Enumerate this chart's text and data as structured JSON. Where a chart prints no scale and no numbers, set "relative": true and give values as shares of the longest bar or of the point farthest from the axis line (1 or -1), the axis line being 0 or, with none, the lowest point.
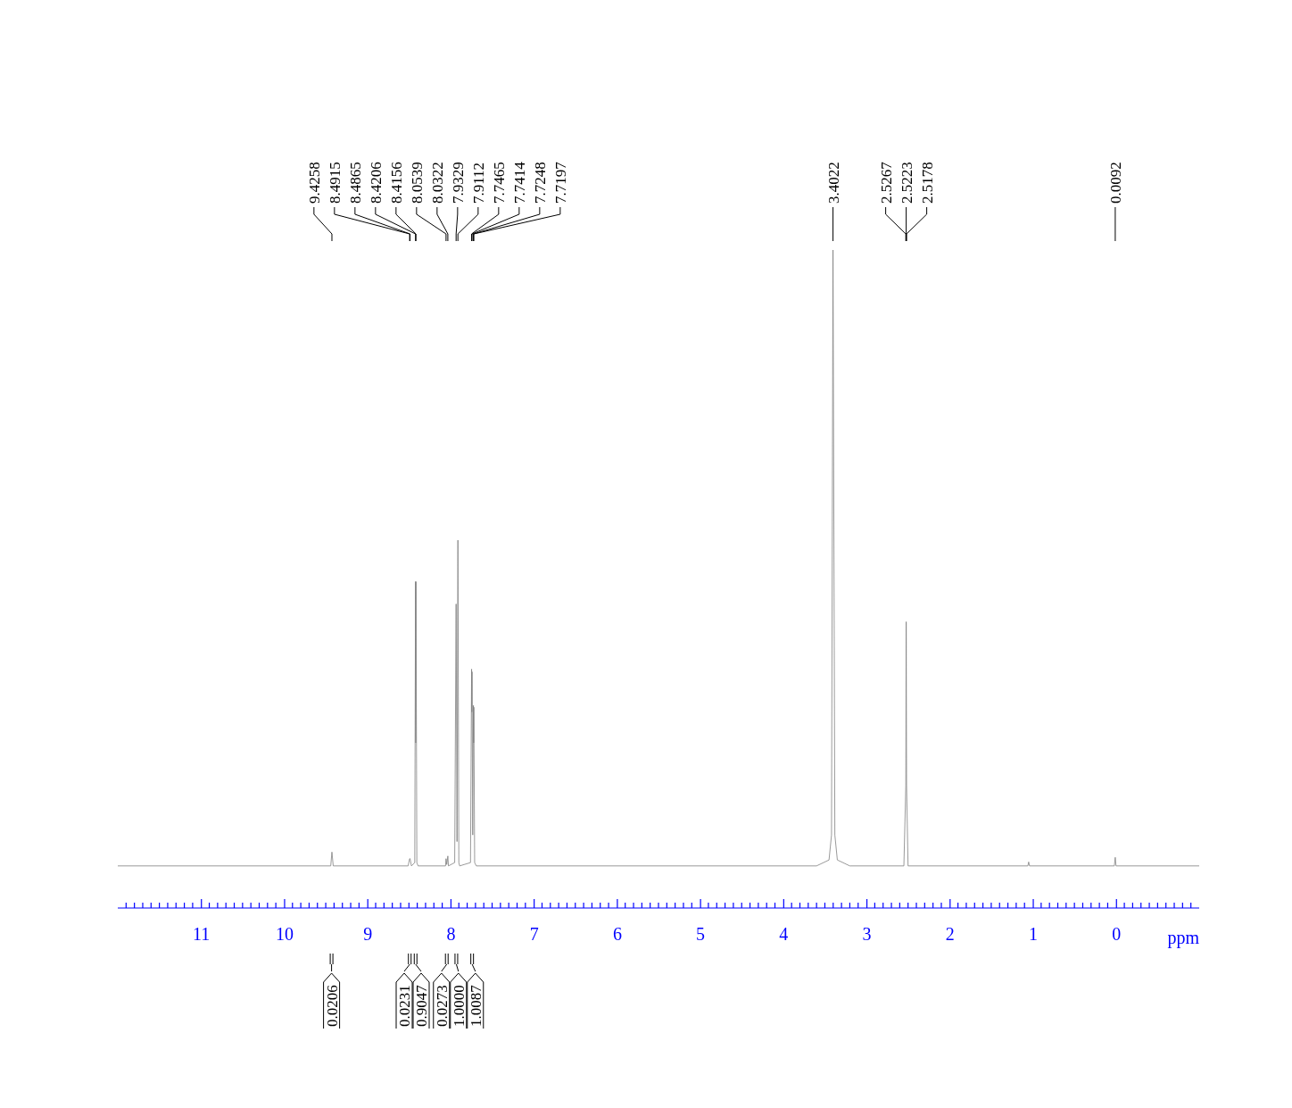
{
  "chart_data": {
    "type": "line",
    "relative": true,
    "xlabel": "ppm",
    "xlim": [
      12,
      -1
    ],
    "xticks": [
      11,
      10,
      9,
      8,
      7,
      6,
      5,
      4,
      3,
      2,
      1,
      0
    ],
    "series": [
      {
        "color": "#808080",
        "x": [
          12,
          9.44,
          9.4258,
          9.41,
          8.6,
          8.51,
          8.4915,
          8.4865,
          8.47,
          8.43,
          8.4206,
          8.418,
          8.4156,
          8.405,
          8.39,
          8.06,
          8.0539,
          8.045,
          8.0322,
          8.025,
          7.95,
          7.9329,
          7.922,
          7.9112,
          7.9,
          7.89,
          7.76,
          7.7465,
          7.744,
          7.7414,
          7.733,
          7.7248,
          7.722,
          7.7197,
          7.71,
          7.69,
          3.6,
          3.45,
          3.42,
          3.4022,
          3.38,
          3.35,
          3.2,
          2.55,
          2.5267,
          2.5223,
          2.5178,
          2.5,
          1.06,
          1.05,
          1.04,
          0.02,
          0.0092,
          0,
          -1
        ],
        "values": [
          0.064,
          0.064,
          0.085,
          0.064,
          0.064,
          0.064,
          0.075,
          0.075,
          0.064,
          0.069,
          0.496,
          0.251,
          0.496,
          0.069,
          0.064,
          0.064,
          0.075,
          0.066,
          0.079,
          0.064,
          0.069,
          0.462,
          0.101,
          0.559,
          0.069,
          0.064,
          0.069,
          0.363,
          0.298,
          0.359,
          0.111,
          0.308,
          0.251,
          0.305,
          0.069,
          0.064,
          0.064,
          0.073,
          0.111,
          1,
          0.111,
          0.073,
          0.064,
          0.064,
          0.186,
          0.435,
          0.186,
          0.064,
          0.064,
          0.07,
          0.064,
          0.064,
          0.077,
          0.064,
          0.064
        ]
      }
    ],
    "annotations": [
      {
        "text": "9.4258",
        "x": 9.4258
      },
      {
        "text": "8.4915",
        "x": 8.4915
      },
      {
        "text": "8.4865",
        "x": 8.4865
      },
      {
        "text": "8.4206",
        "x": 8.4206
      },
      {
        "text": "8.4156",
        "x": 8.4156
      },
      {
        "text": "8.0539",
        "x": 8.0539
      },
      {
        "text": "8.0322",
        "x": 8.0322
      },
      {
        "text": "7.9329",
        "x": 7.9329
      },
      {
        "text": "7.9112",
        "x": 7.9112
      },
      {
        "text": "7.7465",
        "x": 7.7465
      },
      {
        "text": "7.7414",
        "x": 7.7414
      },
      {
        "text": "7.7248",
        "x": 7.7248
      },
      {
        "text": "7.7197",
        "x": 7.7197
      },
      {
        "text": "3.4022",
        "x": 3.4022
      },
      {
        "text": "2.5267",
        "x": 2.5267
      },
      {
        "text": "2.5223",
        "x": 2.5223
      },
      {
        "text": "2.5178",
        "x": 2.5178
      },
      {
        "text": "0.0092",
        "x": 0.0092
      },
      {
        "text": "0.0206",
        "x": 9.43
      },
      {
        "text": "0.0231",
        "x": 8.49
      },
      {
        "text": "0.9047",
        "x": 8.42
      },
      {
        "text": "0.0273",
        "x": 8.045
      },
      {
        "text": "1.0000",
        "x": 7.93
      },
      {
        "text": "1.0087",
        "x": 7.74
      }
    ]
  }
}
